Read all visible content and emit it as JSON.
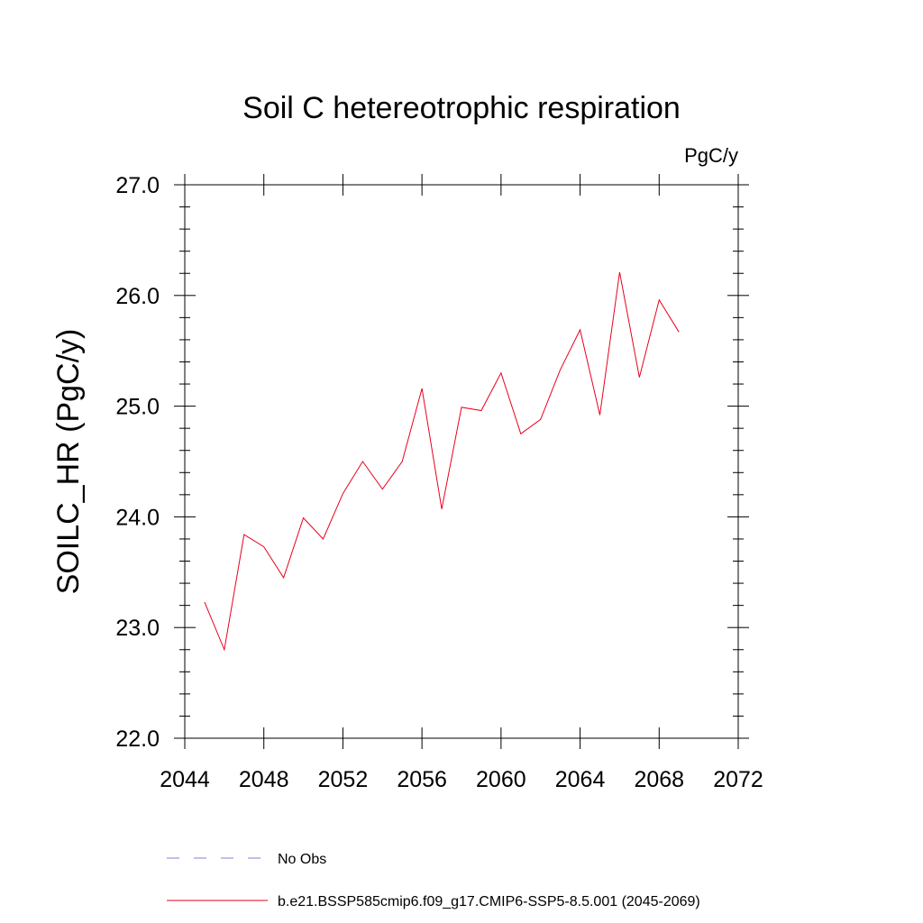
{
  "chart_data": {
    "type": "line",
    "title": "Soil C hetereotrophic respiration",
    "units_label": "PgC/y",
    "xlabel": "",
    "ylabel": "SOILC_HR  (PgC/y)",
    "xlim": [
      2044,
      2072
    ],
    "ylim": [
      22.0,
      27.0
    ],
    "x_ticks": [
      2044,
      2048,
      2052,
      2056,
      2060,
      2064,
      2068,
      2072
    ],
    "x_tick_labels": [
      "2044",
      "2048",
      "2052",
      "2056",
      "2060",
      "2064",
      "2068",
      "2072"
    ],
    "y_ticks": [
      22.0,
      23.0,
      24.0,
      25.0,
      26.0,
      27.0
    ],
    "y_tick_labels": [
      "22.0",
      "23.0",
      "24.0",
      "25.0",
      "26.0",
      "27.0"
    ],
    "grid": false,
    "legend_position": "bottom",
    "legend": [
      {
        "label": "No Obs",
        "color": "#7f7fd0",
        "style": "dashed"
      },
      {
        "label": "b.e21.BSSP585cmip6.f09_g17.CMIP6-SSP5-8.5.001 (2045-2069)",
        "color": "#e8001c",
        "style": "solid"
      }
    ],
    "series": [
      {
        "color": "#e8001c",
        "x": [
          2045,
          2046,
          2047,
          2048,
          2049,
          2050,
          2051,
          2052,
          2053,
          2054,
          2055,
          2056,
          2057,
          2058,
          2059,
          2060,
          2061,
          2062,
          2063,
          2064,
          2065,
          2066,
          2067,
          2068,
          2069
        ],
        "y": [
          23.23,
          22.8,
          23.84,
          23.73,
          23.45,
          23.99,
          23.8,
          24.21,
          24.5,
          24.25,
          24.5,
          25.16,
          24.07,
          24.99,
          24.96,
          25.3,
          24.75,
          24.88,
          25.33,
          25.69,
          24.92,
          26.21,
          25.26,
          25.96,
          25.67
        ]
      }
    ]
  }
}
